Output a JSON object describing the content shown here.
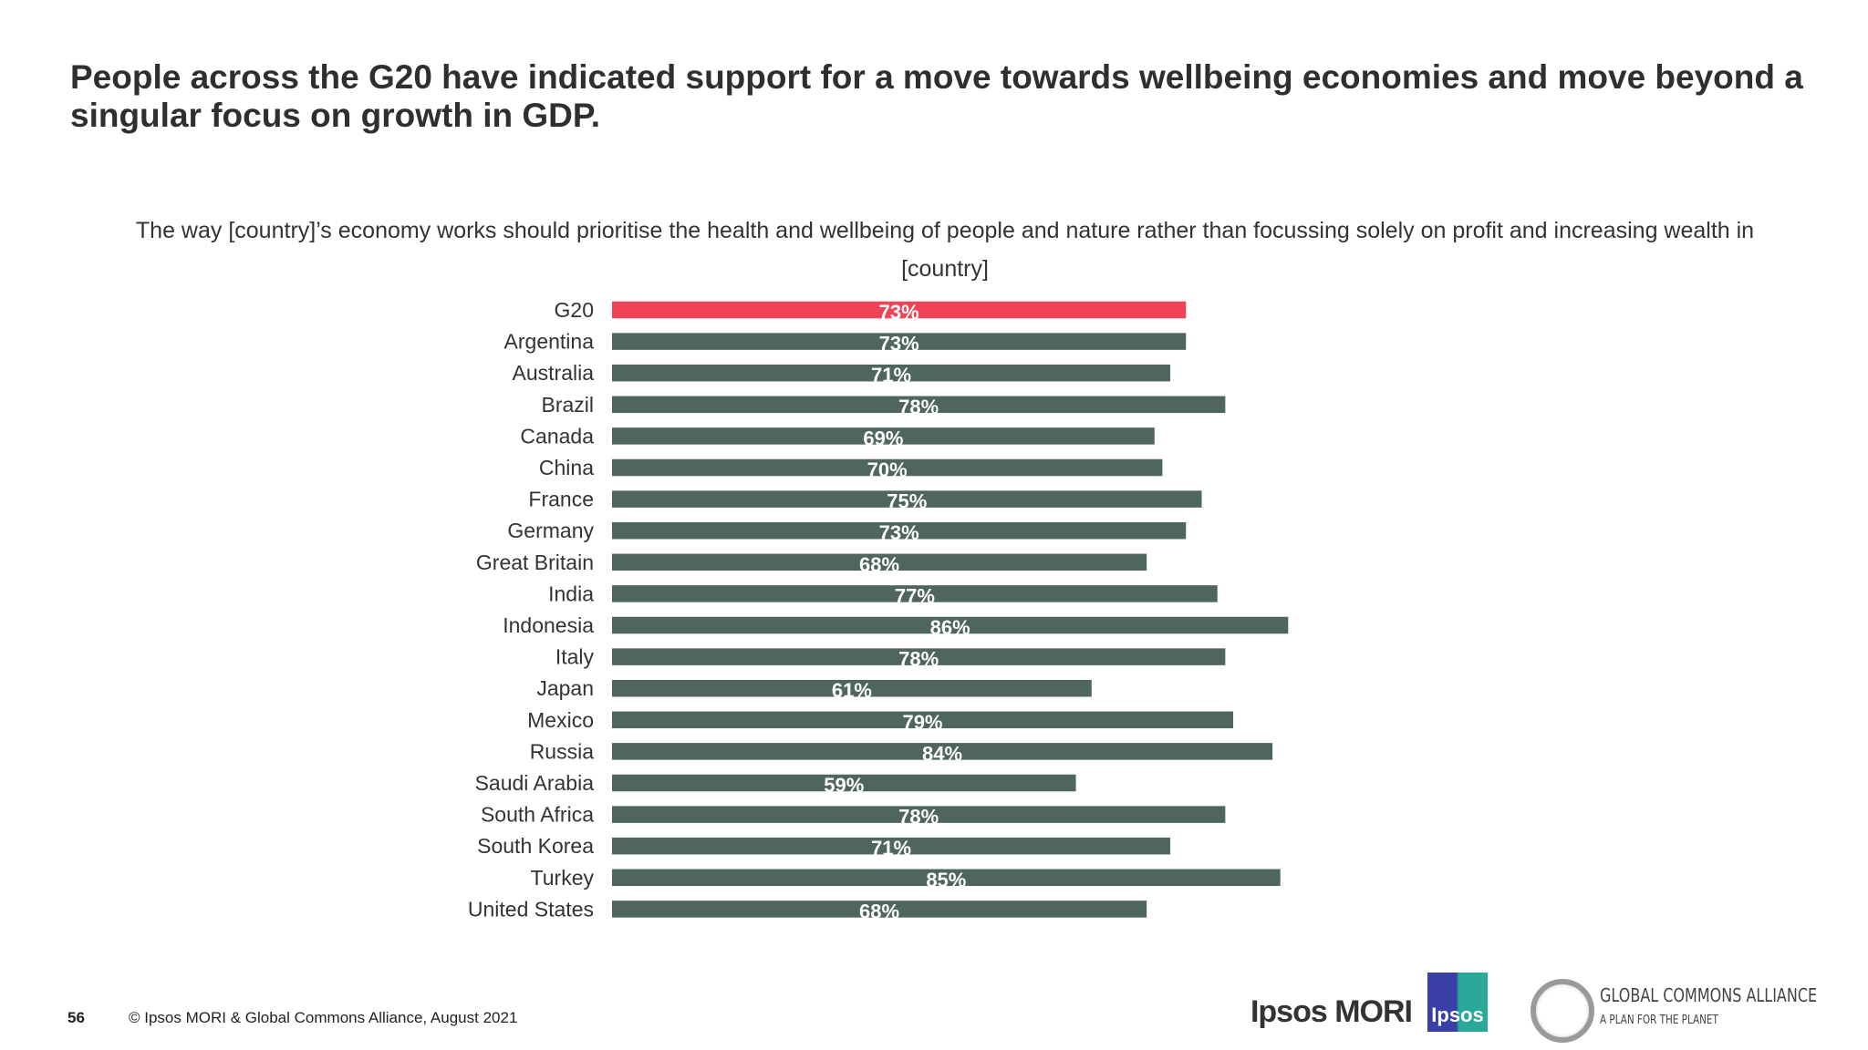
{
  "title": "People across the G20 have indicated support for a move towards wellbeing economies and move beyond a singular focus on growth in GDP.",
  "footer": {
    "page_number": "56",
    "copyright": "© Ipsos MORI & Global Commons Alliance, August 2021"
  },
  "logos": {
    "ipsos_mori": "Ipsos MORI",
    "ipsos": "Ipsos",
    "gca_name": "GLOBAL COMMONS ALLIANCE",
    "gca_tagline": "A PLAN FOR THE PLANET"
  },
  "colors": {
    "highlight": "#ef4458",
    "bar": "#4e665c",
    "label_text": "#ffffff"
  },
  "chart_data": {
    "type": "bar",
    "orientation": "horizontal",
    "title": "The way [country]’s economy works should prioritise the health and wellbeing of people and nature rather than focussing solely on profit and increasing wealth in [country]",
    "categories": [
      "G20",
      "Argentina",
      "Australia",
      "Brazil",
      "Canada",
      "China",
      "France",
      "Germany",
      "Great Britain",
      "India",
      "Indonesia",
      "Italy",
      "Japan",
      "Mexico",
      "Russia",
      "Saudi Arabia",
      "South Africa",
      "South Korea",
      "Turkey",
      "United States"
    ],
    "values": [
      73,
      73,
      71,
      78,
      69,
      70,
      75,
      73,
      68,
      77,
      86,
      78,
      61,
      79,
      84,
      59,
      78,
      71,
      85,
      68
    ],
    "labels": [
      "73%",
      "73%",
      "71%",
      "78%",
      "69%",
      "70%",
      "75%",
      "73%",
      "68%",
      "77%",
      "86%",
      "78%",
      "61%",
      "79%",
      "84%",
      "59%",
      "78%",
      "71%",
      "85%",
      "68%"
    ],
    "highlight_category": "G20",
    "xlim": [
      0,
      100
    ],
    "grid": false,
    "legend": "none"
  }
}
